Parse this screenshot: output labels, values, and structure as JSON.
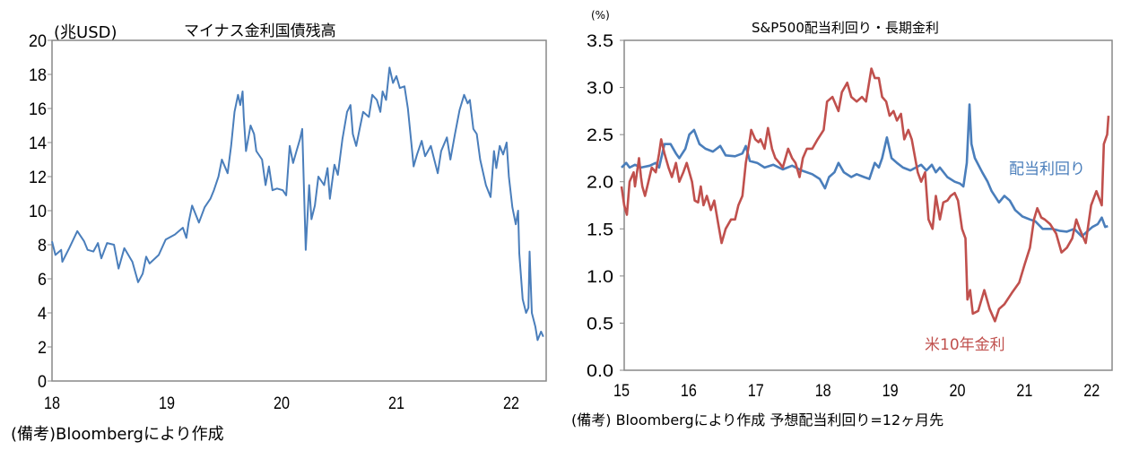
{
  "charts": [
    {
      "title": "マイナス金利国債残高",
      "unit_label": "(兆USD)",
      "note": "(備考)Bloombergにより作成"
    },
    {
      "title": "S&P500配当利回り・長期金利",
      "unit_label": "(%)",
      "note": "(備考) Bloombergにより作成 予想配当利回り=12ヶ月先"
    }
  ],
  "chart_data": [
    {
      "type": "line",
      "title": "マイナス金利国債残高",
      "ylabel": "(兆USD)",
      "xlim": [
        18,
        22.3
      ],
      "ylim": [
        0,
        20
      ],
      "x_ticks": [
        18,
        19,
        20,
        21,
        22
      ],
      "x_tick_labels": [
        "18",
        "19",
        "20",
        "21",
        "22"
      ],
      "y_ticks": [
        0,
        2,
        4,
        6,
        8,
        10,
        12,
        14,
        16,
        18,
        20
      ],
      "y_tick_labels": [
        "0",
        "2",
        "4",
        "6",
        "8",
        "10",
        "12",
        "14",
        "16",
        "18",
        "20"
      ],
      "grid": false,
      "series": [
        {
          "color": "#4a7ebb",
          "x": [
            18.0,
            18.03,
            18.08,
            18.09,
            18.15,
            18.22,
            18.28,
            18.31,
            18.36,
            18.4,
            18.43,
            18.48,
            18.54,
            18.58,
            18.63,
            18.7,
            18.75,
            18.79,
            18.82,
            18.85,
            18.93,
            18.99,
            19.07,
            19.14,
            19.17,
            19.19,
            19.22,
            19.25,
            19.28,
            19.33,
            19.38,
            19.41,
            19.45,
            19.48,
            19.53,
            19.56,
            19.59,
            19.62,
            19.64,
            19.66,
            19.67,
            19.69,
            19.73,
            19.76,
            19.78,
            19.83,
            19.86,
            19.89,
            19.92,
            19.96,
            20.01,
            20.04,
            20.07,
            20.1,
            20.13,
            20.16,
            20.18,
            20.21,
            20.22,
            20.24,
            20.26,
            20.29,
            20.32,
            20.37,
            20.4,
            20.42,
            20.46,
            20.49,
            20.53,
            20.57,
            20.6,
            20.62,
            20.65,
            20.68,
            20.71,
            20.76,
            20.79,
            20.83,
            20.86,
            20.88,
            20.91,
            20.94,
            20.97,
            21.0,
            21.03,
            21.07,
            21.1,
            21.13,
            21.15,
            21.18,
            21.22,
            21.25,
            21.3,
            21.33,
            21.36,
            21.39,
            21.44,
            21.47,
            21.51,
            21.55,
            21.59,
            21.62,
            21.64,
            21.67,
            21.7,
            21.73,
            21.78,
            21.82,
            21.85,
            21.87,
            21.9,
            21.93,
            21.96,
            21.98,
            22.01,
            22.04,
            22.06,
            22.07,
            22.1,
            22.13,
            22.15,
            22.16,
            22.18,
            22.21,
            22.23,
            22.26,
            22.28
          ],
          "values": [
            8.2,
            7.4,
            7.7,
            7.0,
            7.8,
            8.8,
            8.2,
            7.7,
            7.6,
            8.1,
            7.2,
            8.1,
            8.0,
            6.6,
            7.8,
            7.0,
            5.8,
            6.3,
            7.3,
            6.9,
            7.4,
            8.3,
            8.6,
            9.0,
            8.4,
            9.3,
            10.3,
            9.8,
            9.3,
            10.2,
            10.7,
            11.2,
            12.0,
            13.0,
            12.2,
            13.8,
            15.8,
            16.8,
            16.2,
            17.0,
            15.5,
            13.5,
            15.0,
            14.5,
            13.5,
            13.0,
            11.5,
            12.6,
            11.2,
            11.3,
            11.2,
            10.9,
            13.8,
            12.8,
            13.5,
            14.2,
            14.8,
            7.7,
            9.0,
            11.5,
            9.5,
            10.3,
            12.0,
            11.5,
            12.5,
            10.7,
            12.7,
            12.1,
            14.2,
            15.8,
            16.2,
            14.5,
            13.8,
            14.8,
            15.8,
            15.5,
            16.8,
            16.5,
            15.8,
            17.0,
            16.5,
            18.4,
            17.5,
            17.9,
            17.2,
            17.3,
            16.0,
            14.0,
            12.6,
            13.3,
            14.1,
            13.2,
            13.8,
            13.0,
            12.2,
            13.5,
            14.3,
            13.0,
            14.5,
            15.9,
            16.8,
            16.3,
            16.5,
            14.8,
            14.5,
            13.0,
            11.5,
            10.8,
            13.5,
            12.5,
            13.8,
            13.3,
            14.0,
            12.0,
            10.2,
            9.2,
            10.0,
            7.5,
            4.8,
            4.0,
            4.3,
            7.6,
            4.0,
            3.2,
            2.4,
            2.9,
            2.6
          ]
        }
      ]
    },
    {
      "type": "line",
      "title": "S&P500配当利回り・長期金利",
      "ylabel": "(%)",
      "xlim": [
        15,
        22.3
      ],
      "ylim": [
        0,
        3.5
      ],
      "x_ticks": [
        15,
        16,
        17,
        18,
        19,
        20,
        21,
        22
      ],
      "x_tick_labels": [
        "15",
        "16",
        "17",
        "18",
        "19",
        "20",
        "21",
        "22"
      ],
      "y_ticks": [
        0,
        0.5,
        1,
        1.5,
        2,
        2.5,
        3,
        3.5
      ],
      "y_tick_labels": [
        "0.0",
        "0.5",
        "1.0",
        "1.5",
        "2.0",
        "2.5",
        "3.0",
        "3.5"
      ],
      "grid": false,
      "series": [
        {
          "name": "配当利回り",
          "color": "#4a7ebb",
          "x": [
            15.0,
            15.07,
            15.12,
            15.2,
            15.29,
            15.42,
            15.51,
            15.56,
            15.64,
            15.73,
            15.81,
            15.86,
            15.95,
            16.01,
            16.08,
            16.16,
            16.25,
            16.36,
            16.47,
            16.55,
            16.69,
            16.8,
            16.85,
            16.91,
            17.02,
            17.13,
            17.26,
            17.4,
            17.54,
            17.68,
            17.84,
            17.95,
            18.03,
            18.09,
            18.17,
            18.23,
            18.31,
            18.42,
            18.5,
            18.61,
            18.69,
            18.77,
            18.83,
            18.88,
            18.95,
            19.02,
            19.1,
            19.19,
            19.3,
            19.38,
            19.46,
            19.54,
            19.62,
            19.68,
            19.74,
            19.85,
            19.96,
            20.04,
            20.09,
            20.14,
            20.18,
            20.21,
            20.26,
            20.37,
            20.45,
            20.51,
            20.62,
            20.7,
            20.78,
            20.86,
            20.97,
            21.08,
            21.16,
            21.27,
            21.41,
            21.52,
            21.63,
            21.74,
            21.85,
            21.93,
            22.01,
            22.09,
            22.15,
            22.2,
            22.24
          ],
          "values": [
            2.15,
            2.2,
            2.15,
            2.18,
            2.15,
            2.17,
            2.2,
            2.15,
            2.4,
            2.4,
            2.3,
            2.25,
            2.35,
            2.5,
            2.55,
            2.4,
            2.35,
            2.32,
            2.38,
            2.28,
            2.27,
            2.3,
            2.38,
            2.22,
            2.2,
            2.15,
            2.18,
            2.13,
            2.17,
            2.12,
            2.08,
            2.03,
            1.93,
            2.05,
            2.1,
            2.2,
            2.1,
            2.05,
            2.08,
            2.05,
            2.03,
            2.2,
            2.15,
            2.25,
            2.47,
            2.25,
            2.2,
            2.15,
            2.12,
            2.15,
            2.18,
            2.12,
            2.18,
            2.1,
            2.15,
            2.05,
            2.0,
            1.98,
            1.95,
            2.2,
            2.82,
            2.4,
            2.25,
            2.1,
            2.0,
            1.9,
            1.78,
            1.85,
            1.8,
            1.7,
            1.63,
            1.6,
            1.58,
            1.5,
            1.5,
            1.48,
            1.47,
            1.5,
            1.42,
            1.47,
            1.52,
            1.55,
            1.62,
            1.52,
            1.53
          ]
        },
        {
          "name": "米10年金利",
          "color": "#c0504d",
          "x": [
            15.0,
            15.04,
            15.08,
            15.12,
            15.18,
            15.2,
            15.26,
            15.29,
            15.31,
            15.35,
            15.4,
            15.45,
            15.51,
            15.56,
            15.59,
            15.64,
            15.7,
            15.75,
            15.81,
            15.86,
            15.92,
            15.97,
            16.05,
            16.09,
            16.14,
            16.18,
            16.22,
            16.27,
            16.33,
            16.38,
            16.44,
            16.49,
            16.55,
            16.63,
            16.69,
            16.74,
            16.8,
            16.85,
            16.91,
            16.93,
            16.99,
            17.04,
            17.07,
            17.13,
            17.18,
            17.24,
            17.29,
            17.35,
            17.4,
            17.48,
            17.54,
            17.59,
            17.65,
            17.7,
            17.76,
            17.84,
            17.92,
            18.01,
            18.06,
            18.14,
            18.23,
            18.28,
            18.36,
            18.42,
            18.5,
            18.58,
            18.64,
            18.72,
            18.77,
            18.83,
            18.88,
            18.94,
            18.99,
            19.05,
            19.1,
            19.16,
            19.21,
            19.27,
            19.32,
            19.41,
            19.46,
            19.52,
            19.57,
            19.63,
            19.68,
            19.74,
            19.79,
            19.85,
            19.9,
            19.96,
            20.01,
            20.07,
            20.12,
            20.15,
            20.19,
            20.23,
            20.31,
            20.4,
            20.48,
            20.56,
            20.62,
            20.7,
            20.81,
            20.92,
            21.0,
            21.08,
            21.14,
            21.19,
            21.25,
            21.3,
            21.38,
            21.47,
            21.55,
            21.63,
            21.71,
            21.77,
            21.82,
            21.91,
            21.99,
            22.07,
            22.15,
            22.18,
            22.23,
            22.25
          ],
          "values": [
            1.95,
            1.75,
            1.65,
            2.0,
            2.1,
            1.95,
            2.25,
            2.05,
            1.95,
            1.85,
            2.0,
            2.15,
            2.1,
            2.3,
            2.45,
            2.3,
            2.15,
            2.05,
            2.2,
            2.0,
            2.1,
            2.2,
            2.0,
            1.8,
            1.78,
            1.95,
            1.75,
            1.85,
            1.7,
            1.8,
            1.55,
            1.35,
            1.5,
            1.6,
            1.6,
            1.75,
            1.85,
            2.2,
            2.45,
            2.55,
            2.45,
            2.42,
            2.45,
            2.35,
            2.57,
            2.35,
            2.25,
            2.2,
            2.15,
            2.35,
            2.25,
            2.2,
            2.05,
            2.25,
            2.35,
            2.35,
            2.45,
            2.55,
            2.85,
            2.9,
            2.75,
            2.95,
            3.05,
            2.9,
            2.85,
            2.9,
            2.85,
            3.2,
            3.1,
            3.1,
            2.9,
            2.85,
            2.7,
            2.75,
            2.65,
            2.72,
            2.45,
            2.55,
            2.45,
            2.1,
            2.0,
            2.1,
            1.6,
            1.5,
            1.85,
            1.6,
            1.78,
            1.8,
            1.85,
            1.88,
            1.8,
            1.5,
            1.4,
            0.75,
            0.85,
            0.6,
            0.63,
            0.85,
            0.65,
            0.52,
            0.65,
            0.7,
            0.82,
            0.93,
            1.12,
            1.3,
            1.6,
            1.72,
            1.62,
            1.6,
            1.55,
            1.45,
            1.25,
            1.3,
            1.4,
            1.6,
            1.5,
            1.35,
            1.75,
            1.9,
            1.75,
            2.4,
            2.5,
            2.7
          ]
        }
      ]
    }
  ]
}
